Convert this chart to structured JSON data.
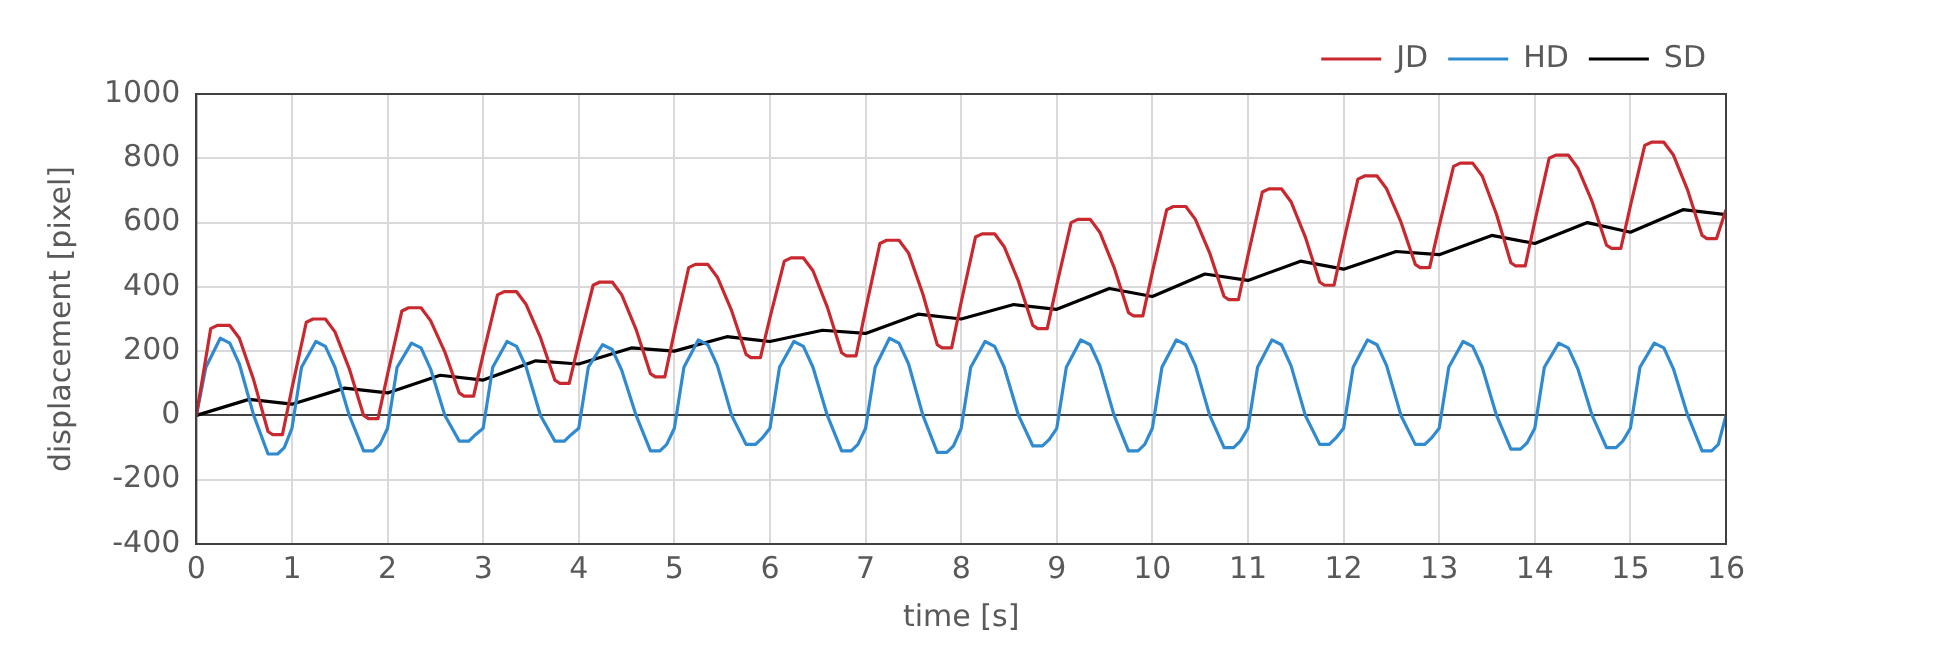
{
  "chart_data": {
    "type": "line",
    "xlabel": "time [s]",
    "ylabel": "displacement [pixel]",
    "xlim": [
      0,
      16
    ],
    "xticks": [
      0,
      1,
      2,
      3,
      4,
      5,
      6,
      7,
      8,
      9,
      10,
      11,
      12,
      13,
      14,
      15,
      16
    ],
    "ylim": [
      -400,
      1000
    ],
    "yticks": [
      -400,
      -200,
      0,
      200,
      400,
      600,
      800,
      1000
    ],
    "grid": true,
    "legend": "top right",
    "marker": "none",
    "line_style": "solid",
    "series": [
      {
        "name": "JD",
        "color": "#c8282e",
        "x": [
          0,
          0.15,
          0.22,
          0.35,
          0.45,
          0.6,
          0.75,
          0.8,
          0.9,
          1,
          1.15,
          1.22,
          1.35,
          1.45,
          1.6,
          1.75,
          1.8,
          1.9,
          2,
          2.15,
          2.22,
          2.35,
          2.45,
          2.6,
          2.75,
          2.8,
          2.9,
          3,
          3.15,
          3.22,
          3.35,
          3.45,
          3.6,
          3.75,
          3.8,
          3.9,
          4,
          4.15,
          4.22,
          4.35,
          4.45,
          4.6,
          4.75,
          4.8,
          4.9,
          5,
          5.15,
          5.22,
          5.35,
          5.45,
          5.6,
          5.75,
          5.8,
          5.9,
          6,
          6.15,
          6.22,
          6.35,
          6.45,
          6.6,
          6.75,
          6.8,
          6.9,
          7,
          7.15,
          7.22,
          7.35,
          7.45,
          7.6,
          7.75,
          7.8,
          7.9,
          8,
          8.15,
          8.22,
          8.35,
          8.45,
          8.6,
          8.75,
          8.8,
          8.9,
          9,
          9.15,
          9.22,
          9.35,
          9.45,
          9.6,
          9.75,
          9.8,
          9.9,
          10,
          10.15,
          10.22,
          10.35,
          10.45,
          10.6,
          10.75,
          10.8,
          10.9,
          11,
          11.15,
          11.22,
          11.35,
          11.45,
          11.6,
          11.75,
          11.8,
          11.9,
          12,
          12.15,
          12.22,
          12.35,
          12.45,
          12.6,
          12.75,
          12.8,
          12.9,
          13,
          13.15,
          13.22,
          13.35,
          13.45,
          13.6,
          13.75,
          13.8,
          13.9,
          14,
          14.15,
          14.22,
          14.35,
          14.45,
          14.6,
          14.75,
          14.8,
          14.9,
          15,
          15.15,
          15.22,
          15.35,
          15.45,
          15.6,
          15.75,
          15.8,
          15.9,
          16
        ],
        "values": [
          0,
          270,
          280,
          280,
          240,
          110,
          -50,
          -60,
          -60,
          84,
          290,
          300,
          300,
          260,
          145,
          0,
          -10,
          -10,
          128,
          325,
          335,
          335,
          295,
          197,
          70,
          60,
          60,
          190,
          375,
          385,
          385,
          345,
          242,
          110,
          100,
          100,
          226,
          405,
          415,
          415,
          375,
          267,
          130,
          120,
          120,
          260,
          460,
          470,
          470,
          430,
          325,
          190,
          180,
          180,
          304,
          480,
          490,
          490,
          450,
          337,
          195,
          185,
          185,
          329,
          535,
          545,
          545,
          505,
          377,
          220,
          210,
          210,
          352,
          555,
          565,
          565,
          525,
          417,
          280,
          270,
          270,
          406,
          600,
          610,
          610,
          570,
          460,
          320,
          310,
          310,
          446,
          640,
          650,
          650,
          610,
          505,
          370,
          360,
          360,
          498,
          695,
          705,
          705,
          665,
          555,
          415,
          405,
          405,
          541,
          735,
          745,
          745,
          705,
          602,
          470,
          460,
          460,
          590,
          775,
          785,
          785,
          745,
          625,
          475,
          465,
          465,
          603,
          800,
          810,
          810,
          770,
          665,
          530,
          520,
          520,
          652,
          840,
          850,
          850,
          810,
          700,
          560,
          550,
          550,
          640
        ]
      },
      {
        "name": "HD",
        "color": "#2f8ad0",
        "x": [
          0,
          0.1,
          0.25,
          0.35,
          0.45,
          0.6,
          0.75,
          0.85,
          0.92,
          1,
          1.1,
          1.25,
          1.35,
          1.45,
          1.6,
          1.75,
          1.85,
          1.92,
          2,
          2.1,
          2.25,
          2.35,
          2.45,
          2.6,
          2.75,
          2.85,
          2.92,
          3,
          3.1,
          3.25,
          3.35,
          3.45,
          3.6,
          3.75,
          3.85,
          3.92,
          4,
          4.1,
          4.25,
          4.35,
          4.45,
          4.6,
          4.75,
          4.85,
          4.92,
          5,
          5.1,
          5.25,
          5.35,
          5.45,
          5.6,
          5.75,
          5.85,
          5.92,
          6,
          6.1,
          6.25,
          6.35,
          6.45,
          6.6,
          6.75,
          6.85,
          6.92,
          7,
          7.1,
          7.25,
          7.35,
          7.45,
          7.6,
          7.75,
          7.85,
          7.92,
          8,
          8.1,
          8.25,
          8.35,
          8.45,
          8.6,
          8.75,
          8.85,
          8.92,
          9,
          9.1,
          9.25,
          9.35,
          9.45,
          9.6,
          9.75,
          9.85,
          9.92,
          10,
          10.1,
          10.25,
          10.35,
          10.45,
          10.6,
          10.75,
          10.85,
          10.92,
          11,
          11.1,
          11.25,
          11.35,
          11.45,
          11.6,
          11.75,
          11.85,
          11.92,
          12,
          12.1,
          12.25,
          12.35,
          12.45,
          12.6,
          12.75,
          12.85,
          12.92,
          13,
          13.1,
          13.25,
          13.35,
          13.45,
          13.6,
          13.75,
          13.85,
          13.92,
          14,
          14.1,
          14.25,
          14.35,
          14.45,
          14.6,
          14.75,
          14.85,
          14.92,
          15,
          15.1,
          15.25,
          15.35,
          15.45,
          15.6,
          15.75,
          15.85,
          15.92,
          16
        ],
        "values": [
          0,
          150,
          240,
          225,
          160,
          0,
          -120,
          -120,
          -100,
          -40,
          150,
          230,
          215,
          150,
          0,
          -110,
          -110,
          -90,
          -40,
          150,
          225,
          210,
          145,
          0,
          -80,
          -80,
          -60,
          -40,
          150,
          230,
          215,
          150,
          0,
          -80,
          -80,
          -60,
          -40,
          150,
          220,
          205,
          140,
          0,
          -110,
          -110,
          -90,
          -40,
          150,
          235,
          220,
          155,
          0,
          -90,
          -90,
          -70,
          -40,
          150,
          230,
          215,
          150,
          0,
          -110,
          -110,
          -90,
          -40,
          150,
          240,
          225,
          160,
          0,
          -115,
          -115,
          -95,
          -40,
          150,
          230,
          215,
          150,
          0,
          -95,
          -95,
          -75,
          -40,
          150,
          235,
          220,
          155,
          0,
          -110,
          -110,
          -90,
          -40,
          150,
          235,
          220,
          155,
          0,
          -100,
          -100,
          -80,
          -40,
          150,
          235,
          220,
          155,
          0,
          -90,
          -90,
          -70,
          -40,
          150,
          235,
          220,
          155,
          0,
          -90,
          -90,
          -70,
          -40,
          150,
          230,
          215,
          150,
          0,
          -105,
          -105,
          -85,
          -40,
          150,
          225,
          210,
          145,
          0,
          -100,
          -100,
          -80,
          -40,
          150,
          225,
          210,
          145,
          0,
          -110,
          -110,
          -90,
          0
        ]
      },
      {
        "name": "SD",
        "color": "#000000",
        "x": [
          0,
          0.55,
          1,
          1.55,
          2,
          2.55,
          3,
          3.55,
          4,
          4.55,
          5,
          5.55,
          6,
          6.55,
          7,
          7.55,
          8,
          8.55,
          9,
          9.55,
          10,
          10.55,
          11,
          11.55,
          12,
          12.55,
          13,
          13.55,
          14,
          14.55,
          15,
          15.55,
          16
        ],
        "values": [
          0,
          50,
          35,
          85,
          70,
          125,
          110,
          170,
          160,
          210,
          200,
          245,
          230,
          265,
          255,
          315,
          300,
          345,
          330,
          395,
          370,
          440,
          420,
          480,
          455,
          510,
          500,
          560,
          535,
          600,
          570,
          640,
          625
        ]
      }
    ]
  }
}
